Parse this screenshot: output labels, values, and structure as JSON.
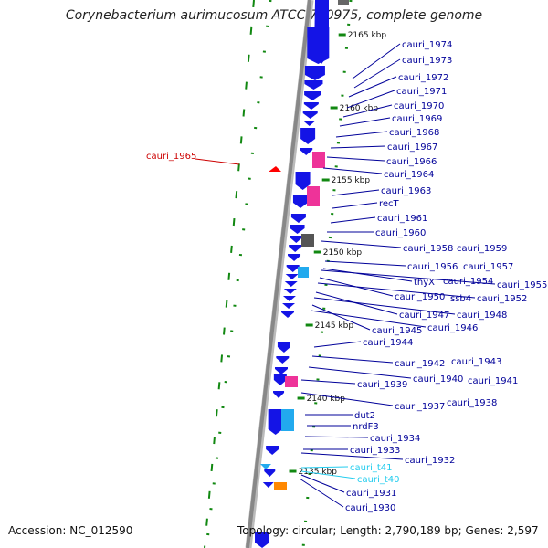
{
  "title": "Corynebacterium aurimucosum ATCC 700975, complete genome",
  "accession": "Accession: NC_012590",
  "topology": "Topology: circular; Length: 2,790,189 bp; Genes: 2,597",
  "colors": {
    "cds": "#1414e6",
    "highlight_red": "#ff0000",
    "pink": "#ee3399",
    "cyan": "#22aaee",
    "gray": "#555555",
    "orange": "#ff8800",
    "tick": "#118811",
    "label_dark": "#000099",
    "label_cyan": "#22ccee",
    "label_red": "#cc0000"
  },
  "bp_ticks": [
    {
      "text": "2165 kbp"
    },
    {
      "text": "2160 kbp"
    },
    {
      "text": "2155 kbp"
    },
    {
      "text": "2150 kbp"
    },
    {
      "text": "2145 kbp"
    },
    {
      "text": "2140 kbp"
    },
    {
      "text": "2135 kbp"
    }
  ],
  "gene_labels": [
    {
      "text": "cauri_1974"
    },
    {
      "text": "cauri_1973"
    },
    {
      "text": "cauri_1972"
    },
    {
      "text": "cauri_1971"
    },
    {
      "text": "cauri_1970"
    },
    {
      "text": "cauri_1969"
    },
    {
      "text": "cauri_1968"
    },
    {
      "text": "cauri_1967"
    },
    {
      "text": "cauri_1966"
    },
    {
      "text": "cauri_1964"
    },
    {
      "text": "cauri_1963"
    },
    {
      "text": "recT"
    },
    {
      "text": "cauri_1961"
    },
    {
      "text": "cauri_1960"
    },
    {
      "text": "cauri_1958"
    },
    {
      "text": "cauri_1959"
    },
    {
      "text": "cauri_1956"
    },
    {
      "text": "cauri_1957"
    },
    {
      "text": "thyX"
    },
    {
      "text": "cauri_1954"
    },
    {
      "text": "cauri_1955"
    },
    {
      "text": "cauri_1950"
    },
    {
      "text": "ssb4"
    },
    {
      "text": "cauri_1952"
    },
    {
      "text": "cauri_1947"
    },
    {
      "text": "cauri_1948"
    },
    {
      "text": "cauri_1945"
    },
    {
      "text": "cauri_1946"
    },
    {
      "text": "cauri_1944"
    },
    {
      "text": "cauri_1942"
    },
    {
      "text": "cauri_1943"
    },
    {
      "text": "cauri_1940"
    },
    {
      "text": "cauri_1941"
    },
    {
      "text": "cauri_1939"
    },
    {
      "text": "cauri_1937"
    },
    {
      "text": "cauri_1938"
    },
    {
      "text": "dut2"
    },
    {
      "text": "nrdF3"
    },
    {
      "text": "cauri_1934"
    },
    {
      "text": "cauri_1933"
    },
    {
      "text": "cauri_1932"
    },
    {
      "text": "cauri_t41"
    },
    {
      "text": "cauri_t40"
    },
    {
      "text": "cauri_1931"
    },
    {
      "text": "cauri_1930"
    },
    {
      "text": "cauri_1965"
    }
  ]
}
